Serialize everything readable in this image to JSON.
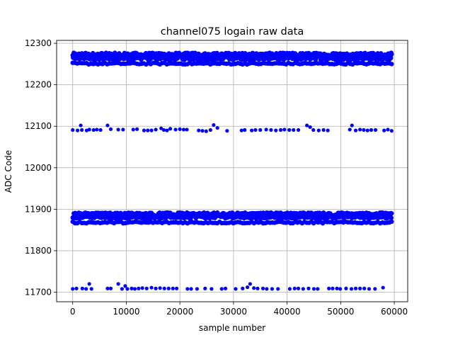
{
  "chart_data": {
    "type": "scatter",
    "title": "channel075 logain raw data",
    "xlabel": "sample number",
    "ylabel": "ADC Code",
    "xlim": [
      -3000,
      62500
    ],
    "ylim": [
      11677,
      12307
    ],
    "xticks": [
      0,
      10000,
      20000,
      30000,
      40000,
      50000,
      60000
    ],
    "yticks": [
      11700,
      11800,
      11900,
      12000,
      12100,
      12200,
      12300
    ],
    "grid": true,
    "marker_color": "#0000ff",
    "series": [
      {
        "values_description_free": true,
        "bands": [
          {
            "level": 12268,
            "spread": [
              12260,
              12277
            ],
            "x_range": [
              0,
              59500
            ],
            "density": "continuous"
          },
          {
            "level": 12251,
            "spread": [
              12249,
              12253
            ],
            "x_range": [
              0,
              59500
            ],
            "density": "dense"
          },
          {
            "level": 11885,
            "spread": [
              11878,
              11892
            ],
            "x_range": [
              0,
              59500
            ],
            "density": "continuous"
          },
          {
            "level": 11868,
            "spread": [
              11866,
              11870
            ],
            "x_range": [
              0,
              59500
            ],
            "density": "dense"
          }
        ],
        "points": [
          [
            0,
            12091
          ],
          [
            900,
            12090
          ],
          [
            1500,
            12102
          ],
          [
            1700,
            12091
          ],
          [
            2600,
            12090
          ],
          [
            3100,
            12092
          ],
          [
            3900,
            12091
          ],
          [
            4500,
            12092
          ],
          [
            5200,
            12091
          ],
          [
            6500,
            12102
          ],
          [
            7100,
            12093
          ],
          [
            8500,
            12092
          ],
          [
            9400,
            12092
          ],
          [
            11300,
            12092
          ],
          [
            12000,
            12093
          ],
          [
            13300,
            12090
          ],
          [
            14000,
            12090
          ],
          [
            14700,
            12090
          ],
          [
            15500,
            12092
          ],
          [
            16500,
            12095
          ],
          [
            17000,
            12091
          ],
          [
            17600,
            12090
          ],
          [
            18200,
            12094
          ],
          [
            19200,
            12092
          ],
          [
            20000,
            12093
          ],
          [
            20700,
            12092
          ],
          [
            21300,
            12092
          ],
          [
            23500,
            12090
          ],
          [
            24200,
            12089
          ],
          [
            24900,
            12088
          ],
          [
            25700,
            12091
          ],
          [
            26300,
            12103
          ],
          [
            27000,
            12096
          ],
          [
            28800,
            12089
          ],
          [
            31500,
            12090
          ],
          [
            32100,
            12091
          ],
          [
            33400,
            12090
          ],
          [
            34100,
            12091
          ],
          [
            35000,
            12091
          ],
          [
            36100,
            12092
          ],
          [
            37000,
            12091
          ],
          [
            37900,
            12090
          ],
          [
            38800,
            12091
          ],
          [
            39500,
            12092
          ],
          [
            40400,
            12091
          ],
          [
            41200,
            12091
          ],
          [
            42100,
            12091
          ],
          [
            43700,
            12102
          ],
          [
            44300,
            12098
          ],
          [
            44900,
            12091
          ],
          [
            45900,
            12090
          ],
          [
            46800,
            12091
          ],
          [
            47600,
            12090
          ],
          [
            51700,
            12092
          ],
          [
            52100,
            12102
          ],
          [
            52800,
            12090
          ],
          [
            53600,
            12092
          ],
          [
            54300,
            12091
          ],
          [
            55000,
            12090
          ],
          [
            55700,
            12091
          ],
          [
            56500,
            12091
          ],
          [
            58100,
            12090
          ],
          [
            58800,
            12092
          ],
          [
            59500,
            12089
          ],
          [
            0,
            11708
          ],
          [
            700,
            11709
          ],
          [
            1800,
            11709
          ],
          [
            2500,
            11708
          ],
          [
            3100,
            11720
          ],
          [
            3500,
            11708
          ],
          [
            6500,
            11709
          ],
          [
            7100,
            11709
          ],
          [
            8500,
            11720
          ],
          [
            9200,
            11708
          ],
          [
            9800,
            11715
          ],
          [
            10200,
            11708
          ],
          [
            11000,
            11709
          ],
          [
            11600,
            11708
          ],
          [
            12300,
            11709
          ],
          [
            13000,
            11710
          ],
          [
            13800,
            11709
          ],
          [
            14700,
            11711
          ],
          [
            15500,
            11709
          ],
          [
            16300,
            11710
          ],
          [
            17100,
            11709
          ],
          [
            17900,
            11709
          ],
          [
            18700,
            11709
          ],
          [
            19400,
            11709
          ],
          [
            21400,
            11708
          ],
          [
            22100,
            11708
          ],
          [
            23200,
            11708
          ],
          [
            24700,
            11709
          ],
          [
            25900,
            11708
          ],
          [
            27800,
            11708
          ],
          [
            28500,
            11709
          ],
          [
            30400,
            11708
          ],
          [
            31700,
            11709
          ],
          [
            32600,
            11712
          ],
          [
            33100,
            11720
          ],
          [
            33800,
            11710
          ],
          [
            34500,
            11709
          ],
          [
            35500,
            11709
          ],
          [
            36200,
            11708
          ],
          [
            37200,
            11708
          ],
          [
            38300,
            11708
          ],
          [
            40500,
            11708
          ],
          [
            41400,
            11709
          ],
          [
            42100,
            11709
          ],
          [
            43000,
            11708
          ],
          [
            44000,
            11709
          ],
          [
            45000,
            11708
          ],
          [
            45700,
            11708
          ],
          [
            47800,
            11709
          ],
          [
            48500,
            11709
          ],
          [
            49300,
            11709
          ],
          [
            49900,
            11708
          ],
          [
            51000,
            11709
          ],
          [
            52000,
            11708
          ],
          [
            52800,
            11709
          ],
          [
            53600,
            11709
          ],
          [
            54400,
            11709
          ],
          [
            55300,
            11708
          ],
          [
            56400,
            11708
          ],
          [
            57900,
            11711
          ]
        ]
      }
    ]
  }
}
